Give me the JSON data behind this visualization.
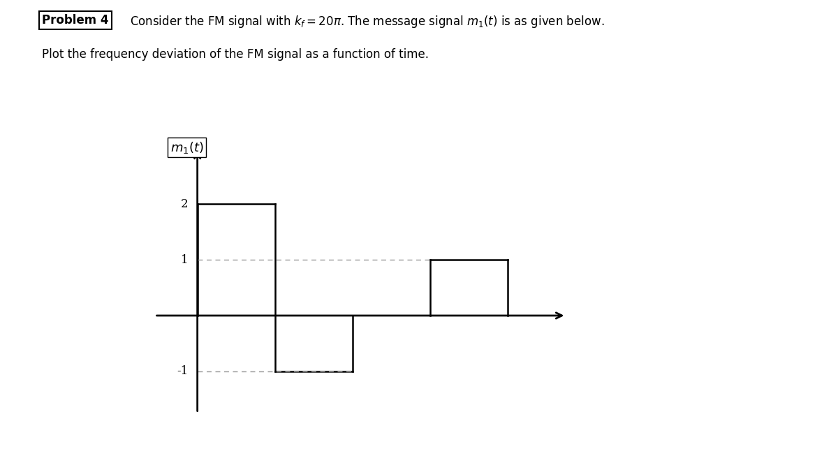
{
  "title_box": "Problem 4",
  "title_text_line1": "Consider the FM signal with $k_f = 20\\pi$. The message signal $m_1(t)$ is as given below.",
  "title_text_line2": "Plot the frequency deviation of the FM signal as a function of time.",
  "ylabel": "$m_1(t)$",
  "ytick_labels": [
    "2",
    "1",
    "-1"
  ],
  "ytick_values": [
    2,
    1,
    -1
  ],
  "xlim": [
    -0.6,
    4.8
  ],
  "ylim": [
    -1.9,
    3.2
  ],
  "background_color": "#ffffff",
  "signal_color": "#000000",
  "axis_color": "#000000",
  "dashed_color": "#999999",
  "linewidth": 1.8,
  "fontsize_label": 13,
  "fontsize_ytick": 12,
  "fontsize_header": 12
}
